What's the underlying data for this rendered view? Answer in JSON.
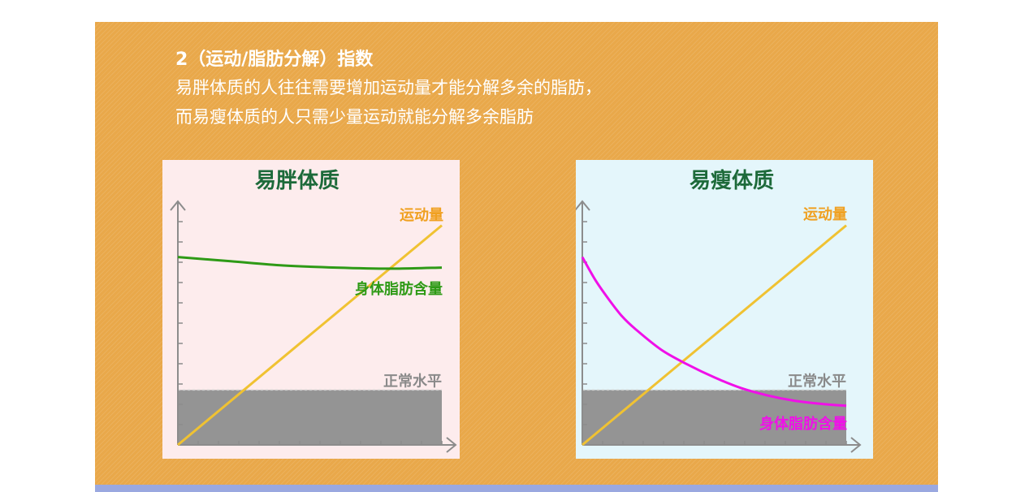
{
  "header": {
    "title": "2（运动/脂肪分解）指数",
    "line1": "易胖体质的人往往需要增加运动量才能分解多余的脂肪，",
    "line2": "而易瘦体质的人只需少量运动就能分解多余脂肪"
  },
  "colors": {
    "background": "#e9a84a",
    "exercise_line": "#f0c232",
    "fat_line_left": "#2e9a16",
    "fat_line_right": "#f010e8",
    "normal_band": "#949494",
    "title_text": "#1d6a3a",
    "bottom_bar": "#9aa8e0"
  },
  "chart_data": [
    {
      "type": "line",
      "title": "易胖体质",
      "xlabel": "",
      "ylabel": "",
      "xlim": [
        0,
        10
      ],
      "ylim": [
        0,
        10
      ],
      "normal_level": {
        "label": "正常水平",
        "value": 2.6
      },
      "series": [
        {
          "name": "运动量",
          "color": "#f0c232",
          "x": [
            0,
            10
          ],
          "y": [
            0,
            10.4
          ]
        },
        {
          "name": "身体脂肪含量",
          "color": "#2e9a16",
          "x": [
            0,
            2,
            4,
            6,
            8,
            10
          ],
          "y": [
            8.9,
            8.7,
            8.5,
            8.4,
            8.35,
            8.4
          ]
        }
      ]
    },
    {
      "type": "line",
      "title": "易瘦体质",
      "xlabel": "",
      "ylabel": "",
      "xlim": [
        0,
        10
      ],
      "ylim": [
        0,
        10
      ],
      "normal_level": {
        "label": "正常水平",
        "value": 2.6
      },
      "series": [
        {
          "name": "运动量",
          "color": "#f0c232",
          "x": [
            0,
            10
          ],
          "y": [
            0,
            10.4
          ]
        },
        {
          "name": "身体脂肪含量",
          "color": "#f010e8",
          "x": [
            0,
            0.5,
            1,
            1.5,
            2,
            3,
            4,
            5,
            6,
            7,
            8,
            9,
            10
          ],
          "y": [
            8.9,
            7.8,
            6.9,
            6.1,
            5.5,
            4.5,
            3.8,
            3.2,
            2.7,
            2.35,
            2.1,
            1.95,
            1.85
          ]
        }
      ]
    }
  ]
}
